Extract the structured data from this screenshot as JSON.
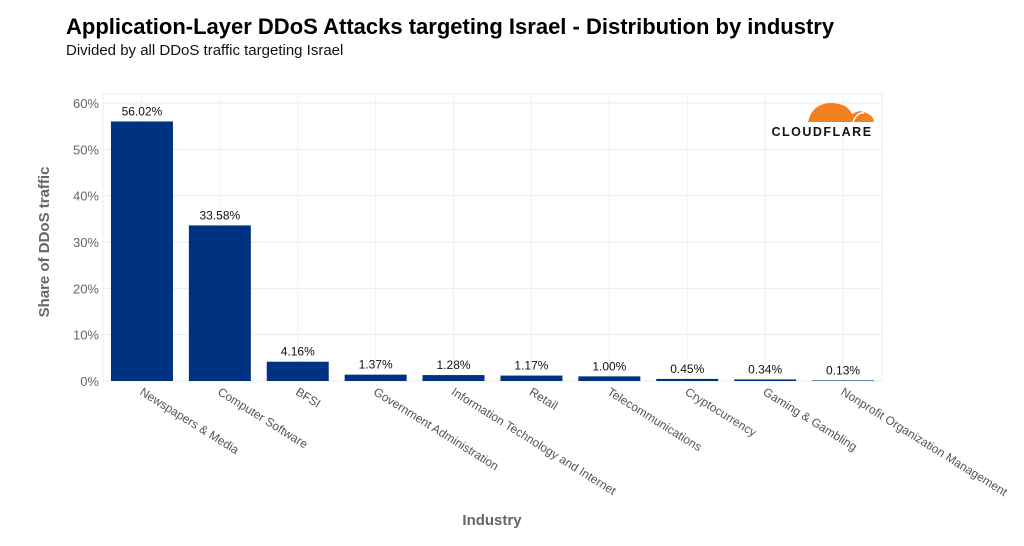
{
  "chart_data": {
    "type": "bar",
    "title": "Application-Layer DDoS Attacks targeting Israel - Distribution by industry",
    "subtitle": "Divided by all DDoS traffic targeting Israel",
    "xlabel": "Industry",
    "ylabel": "Share of DDoS traffic",
    "ylim": [
      0,
      60
    ],
    "yticks": [
      "0%",
      "10%",
      "20%",
      "30%",
      "40%",
      "50%",
      "60%"
    ],
    "grid": true,
    "categories": [
      "Newspapers & Media",
      "Computer Software",
      "BFSI",
      "Government Administration",
      "Information Technology and Internet",
      "Retail",
      "Telecommunications",
      "Cryptocurrency",
      "Gaming & Gambling",
      "Nonprofit Organization Management"
    ],
    "values": [
      56.02,
      33.58,
      4.16,
      1.37,
      1.28,
      1.17,
      1.0,
      0.45,
      0.34,
      0.13
    ],
    "data_labels": [
      "56.02%",
      "33.58%",
      "4.16%",
      "1.37%",
      "1.28%",
      "1.17%",
      "1.00%",
      "0.45%",
      "0.34%",
      "0.13%"
    ],
    "bar_color": "#003282"
  },
  "logo": {
    "text": "CLOUDFLARE",
    "color": "#f38020"
  }
}
